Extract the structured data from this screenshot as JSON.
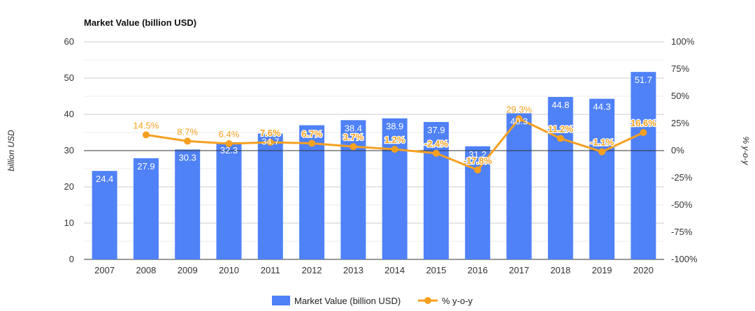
{
  "chart_data": {
    "type": "bar",
    "title": "Market Value (billion USD)",
    "ylabel": "billion USD",
    "y2label": "% y-o-y",
    "ylim": [
      0,
      60
    ],
    "y2lim": [
      -100,
      100
    ],
    "yticks": [
      "0",
      "10",
      "20",
      "30",
      "40",
      "50",
      "60"
    ],
    "y2ticks": [
      "-100%",
      "-75%",
      "-50%",
      "-25%",
      "0%",
      "25%",
      "50%",
      "75%",
      "100%"
    ],
    "grid": true,
    "legend_position": "bottom",
    "categories": [
      "2007",
      "2008",
      "2009",
      "2010",
      "2011",
      "2012",
      "2013",
      "2014",
      "2015",
      "2016",
      "2017",
      "2018",
      "2019",
      "2020"
    ],
    "series": [
      {
        "name": "Market Value (billion USD)",
        "type": "bar",
        "axis": "left",
        "color": "#4f81f7",
        "values": [
          24.4,
          27.9,
          30.3,
          32.3,
          34.7,
          37.0,
          38.4,
          38.9,
          37.9,
          31.2,
          40.3,
          44.8,
          44.3,
          51.7
        ],
        "labels": [
          "24.4",
          "27.9",
          "30.3",
          "32.3",
          "34.7",
          "",
          "38.4",
          "38.9",
          "37.9",
          "31.2",
          "40.3",
          "44.8",
          "44.3",
          "51.7"
        ]
      },
      {
        "name": "% y-o-y",
        "type": "line",
        "axis": "right",
        "color": "#f5a021",
        "values": [
          null,
          14.5,
          8.7,
          6.4,
          7.6,
          6.7,
          3.7,
          1.2,
          -2.4,
          -17.8,
          29.3,
          11.2,
          -1.1,
          16.6
        ],
        "labels": [
          "",
          "14.5%",
          "8.7%",
          "6.4%",
          "7.6%",
          "6.7%",
          "3.7%",
          "1.2%",
          "-2.4%",
          "-17.8%",
          "29.3%",
          "11.2%",
          "-1.1%",
          "16.6%"
        ]
      }
    ]
  }
}
